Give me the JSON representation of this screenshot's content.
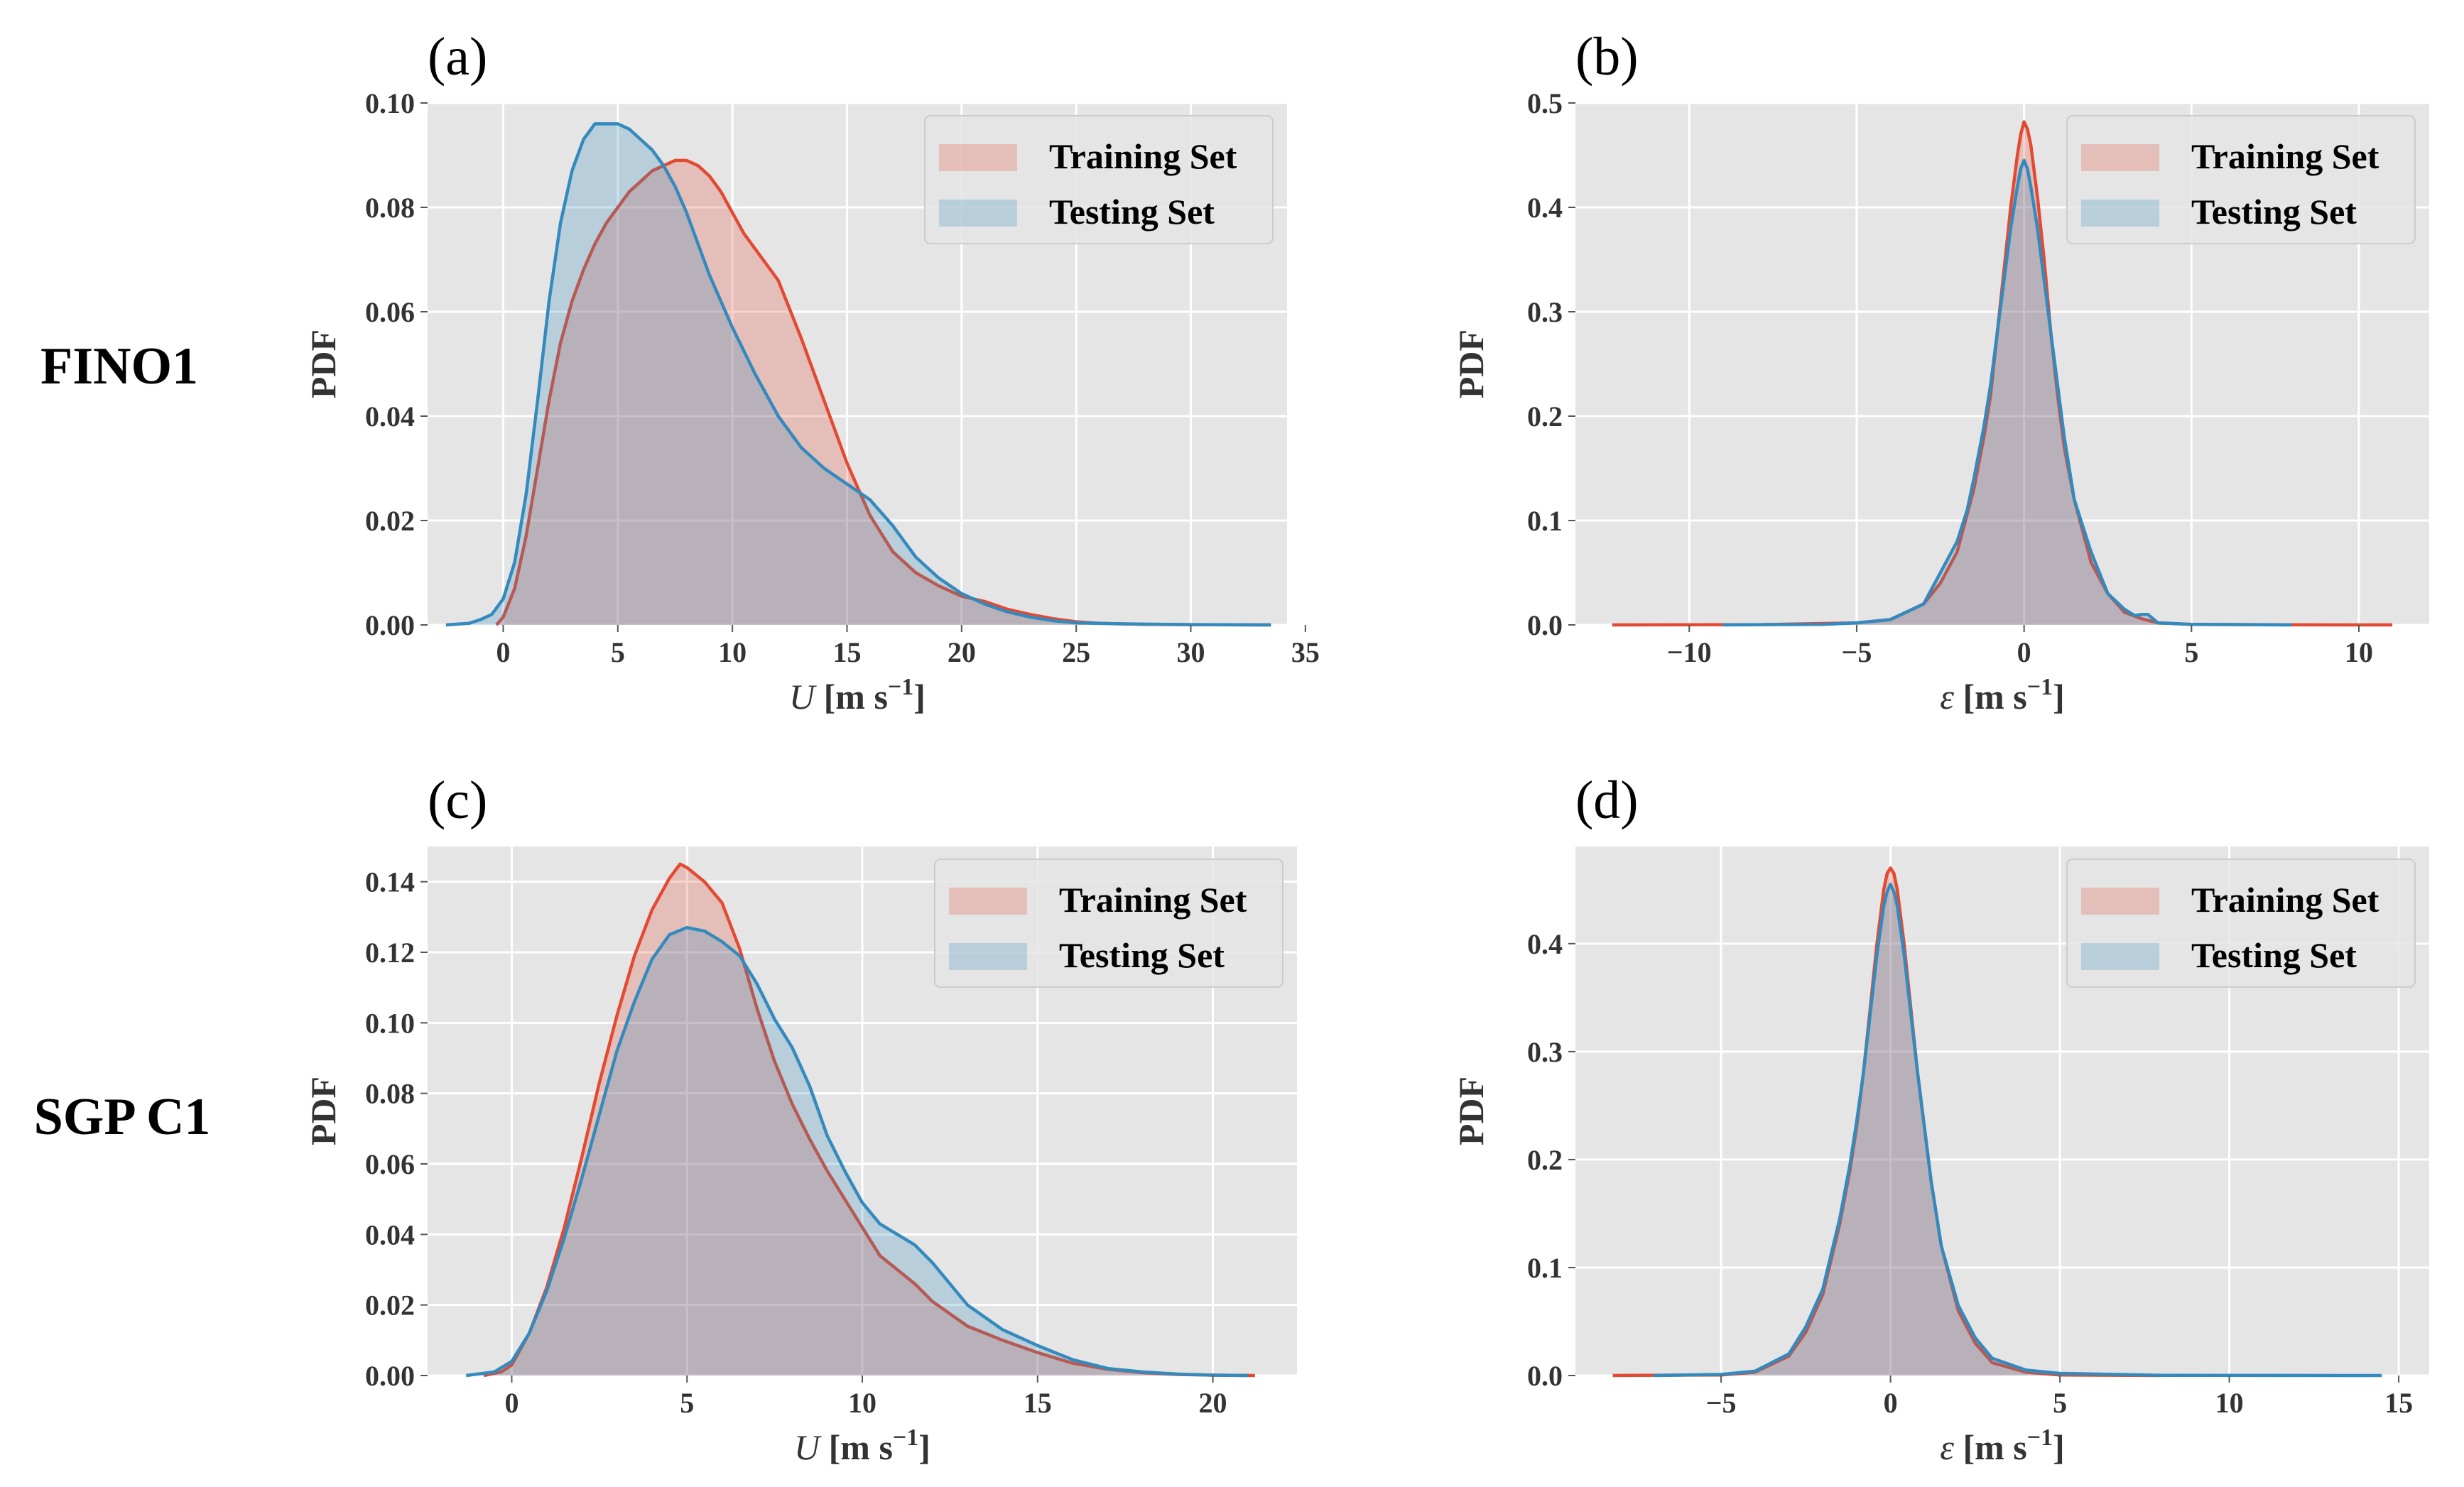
{
  "row_labels": [
    "FINO1",
    "SGP C1"
  ],
  "colors": {
    "training": "#E24A33",
    "testing": "#348ABD",
    "axes_bg": "#E5E5E5",
    "grid": "#FFFFFF"
  },
  "chart_data": [
    {
      "type": "area",
      "panel_label": "(a)",
      "row": "FINO1",
      "xlabel_var": "U",
      "xlabel_unit": " [m s",
      "xlabel_exp": "−1",
      "xlabel_close": "]",
      "ylabel": "PDF",
      "xlim": [
        -3.3,
        34.2
      ],
      "ylim": [
        0,
        0.1
      ],
      "xticks": [
        0,
        5,
        10,
        15,
        20,
        25,
        30,
        35
      ],
      "xtick_labels": [
        "0",
        "5",
        "10",
        "15",
        "20",
        "25",
        "30",
        "35"
      ],
      "yticks": [
        0,
        0.02,
        0.04,
        0.06,
        0.08,
        0.1
      ],
      "ytick_labels": [
        "0.00",
        "0.02",
        "0.04",
        "0.06",
        "0.08",
        "0.10"
      ],
      "legend": {
        "placement": "top-right",
        "entries": [
          "Training Set",
          "Testing Set"
        ]
      },
      "series": [
        {
          "name": "Training Set",
          "x": [
            -0.3,
            0,
            0.5,
            1,
            1.5,
            2,
            2.5,
            3,
            3.5,
            4,
            4.5,
            5,
            5.5,
            6,
            6.5,
            7,
            7.5,
            8,
            8.5,
            9,
            9.5,
            10,
            10.5,
            11,
            12,
            13,
            14,
            15,
            16,
            17,
            18,
            19,
            20,
            21,
            22,
            23,
            24,
            25,
            26,
            28,
            30,
            33.5
          ],
          "y": [
            0,
            0.0015,
            0.007,
            0.017,
            0.03,
            0.043,
            0.054,
            0.062,
            0.068,
            0.073,
            0.077,
            0.08,
            0.083,
            0.085,
            0.087,
            0.088,
            0.089,
            0.089,
            0.088,
            0.086,
            0.083,
            0.079,
            0.075,
            0.072,
            0.066,
            0.055,
            0.043,
            0.031,
            0.021,
            0.014,
            0.01,
            0.0075,
            0.0055,
            0.0045,
            0.003,
            0.002,
            0.0012,
            0.0006,
            0.0003,
            0.0001,
            5e-05,
            0
          ]
        },
        {
          "name": "Testing Set",
          "x": [
            -2.5,
            -1.5,
            -1,
            -0.5,
            0,
            0.5,
            1,
            1.5,
            2,
            2.5,
            3,
            3.5,
            4,
            4.5,
            5,
            5.5,
            6,
            6.5,
            7,
            7.5,
            8,
            8.5,
            9,
            9.5,
            10,
            11,
            12,
            13,
            14,
            15,
            16,
            17,
            18,
            19,
            20,
            21,
            22,
            23,
            24,
            25,
            27,
            30,
            33.5
          ],
          "y": [
            0,
            0.0003,
            0.001,
            0.002,
            0.005,
            0.012,
            0.025,
            0.043,
            0.062,
            0.077,
            0.087,
            0.093,
            0.096,
            0.096,
            0.096,
            0.095,
            0.093,
            0.091,
            0.088,
            0.084,
            0.079,
            0.073,
            0.067,
            0.062,
            0.057,
            0.048,
            0.04,
            0.034,
            0.03,
            0.027,
            0.024,
            0.019,
            0.013,
            0.009,
            0.006,
            0.004,
            0.0025,
            0.0015,
            0.0008,
            0.0004,
            0.0002,
            5e-05,
            0
          ]
        }
      ]
    },
    {
      "type": "area",
      "panel_label": "(b)",
      "row": "FINO1",
      "xlabel_var": "ε",
      "xlabel_unit": " [m s",
      "xlabel_exp": "−1",
      "xlabel_close": "]",
      "ylabel": "PDF",
      "xlim": [
        -13.4,
        12.1
      ],
      "ylim": [
        0,
        0.5
      ],
      "xticks": [
        -10,
        -5,
        0,
        5,
        10
      ],
      "xtick_labels": [
        "−10",
        "−5",
        "0",
        "5",
        "10"
      ],
      "yticks": [
        0,
        0.1,
        0.2,
        0.3,
        0.4,
        0.5
      ],
      "ytick_labels": [
        "0.0",
        "0.1",
        "0.2",
        "0.3",
        "0.4",
        "0.5"
      ],
      "legend": {
        "placement": "top-right",
        "entries": [
          "Training Set",
          "Testing Set"
        ]
      },
      "series": [
        {
          "name": "Training Set",
          "x": [
            -12.3,
            -8,
            -5,
            -4,
            -3,
            -2.5,
            -2,
            -1.5,
            -1.2,
            -1,
            -0.8,
            -0.6,
            -0.4,
            -0.2,
            -0.1,
            0,
            0.1,
            0.2,
            0.4,
            0.6,
            0.8,
            1,
            1.2,
            1.5,
            2,
            2.5,
            3,
            3.5,
            4,
            5,
            8,
            11
          ],
          "y": [
            0,
            0.0002,
            0.002,
            0.005,
            0.02,
            0.04,
            0.07,
            0.13,
            0.18,
            0.22,
            0.28,
            0.34,
            0.4,
            0.45,
            0.47,
            0.482,
            0.475,
            0.46,
            0.41,
            0.35,
            0.28,
            0.22,
            0.17,
            0.12,
            0.06,
            0.03,
            0.012,
            0.006,
            0.002,
            0.0005,
            0.0001,
            0
          ]
        },
        {
          "name": "Testing Set",
          "x": [
            -9,
            -6,
            -5,
            -4,
            -3,
            -2.5,
            -2,
            -1.7,
            -1.5,
            -1.2,
            -1,
            -0.8,
            -0.6,
            -0.4,
            -0.2,
            -0.1,
            0,
            0.1,
            0.2,
            0.4,
            0.6,
            0.8,
            1,
            1.2,
            1.5,
            2,
            2.5,
            3,
            3.3,
            3.5,
            3.7,
            4,
            5,
            8
          ],
          "y": [
            0,
            0.0005,
            0.002,
            0.005,
            0.02,
            0.05,
            0.08,
            0.11,
            0.14,
            0.19,
            0.23,
            0.28,
            0.33,
            0.38,
            0.42,
            0.437,
            0.445,
            0.437,
            0.42,
            0.38,
            0.33,
            0.28,
            0.23,
            0.18,
            0.12,
            0.07,
            0.03,
            0.015,
            0.009,
            0.01,
            0.01,
            0.002,
            0.0005,
            0
          ]
        }
      ]
    },
    {
      "type": "area",
      "panel_label": "(c)",
      "row": "SGP C1",
      "xlabel_var": "U",
      "xlabel_unit": " [m s",
      "xlabel_exp": "−1",
      "xlabel_close": "]",
      "ylabel": "PDF",
      "xlim": [
        -2.4,
        22.4
      ],
      "ylim": [
        0,
        0.15
      ],
      "xticks": [
        0,
        5,
        10,
        15,
        20
      ],
      "xtick_labels": [
        "0",
        "5",
        "10",
        "15",
        "20"
      ],
      "yticks": [
        0,
        0.02,
        0.04,
        0.06,
        0.08,
        0.1,
        0.12,
        0.14
      ],
      "ytick_labels": [
        "0.00",
        "0.02",
        "0.04",
        "0.06",
        "0.08",
        "0.10",
        "0.12",
        "0.14"
      ],
      "legend": {
        "placement": "top-right",
        "entries": [
          "Training Set",
          "Testing Set"
        ]
      },
      "series": [
        {
          "name": "Training Set",
          "x": [
            -0.8,
            -0.3,
            0,
            0.5,
            1,
            1.5,
            2,
            2.5,
            3,
            3.5,
            4,
            4.5,
            4.8,
            5,
            5.5,
            6,
            6.5,
            7,
            7.5,
            8,
            8.5,
            9,
            9.5,
            10,
            10.5,
            11,
            11.5,
            12,
            13,
            14,
            15,
            16,
            17,
            18,
            19,
            20,
            21.2
          ],
          "y": [
            0,
            0.001,
            0.003,
            0.012,
            0.025,
            0.042,
            0.062,
            0.083,
            0.102,
            0.119,
            0.132,
            0.141,
            0.145,
            0.144,
            0.14,
            0.134,
            0.121,
            0.104,
            0.089,
            0.077,
            0.067,
            0.058,
            0.05,
            0.042,
            0.034,
            0.03,
            0.026,
            0.021,
            0.014,
            0.01,
            0.0065,
            0.0035,
            0.0018,
            0.0008,
            0.0003,
            0.0001,
            0
          ]
        },
        {
          "name": "Testing Set",
          "x": [
            -1.3,
            -0.5,
            0,
            0.5,
            1,
            1.5,
            2,
            2.5,
            3,
            3.5,
            4,
            4.5,
            5,
            5.5,
            6,
            6.5,
            7,
            7.5,
            8,
            8.5,
            9,
            9.5,
            10,
            10.5,
            11,
            11.5,
            12,
            13,
            14,
            15,
            16,
            17,
            18,
            19,
            20,
            21
          ],
          "y": [
            0,
            0.001,
            0.004,
            0.012,
            0.024,
            0.039,
            0.056,
            0.074,
            0.092,
            0.106,
            0.118,
            0.125,
            0.127,
            0.126,
            0.123,
            0.119,
            0.111,
            0.101,
            0.093,
            0.082,
            0.068,
            0.058,
            0.049,
            0.043,
            0.04,
            0.037,
            0.032,
            0.02,
            0.013,
            0.0085,
            0.0045,
            0.002,
            0.001,
            0.0004,
            0.0001,
            0
          ]
        }
      ]
    },
    {
      "type": "area",
      "panel_label": "(d)",
      "row": "SGP C1",
      "xlabel_var": "ε",
      "xlabel_unit": " [m s",
      "xlabel_exp": "−1",
      "xlabel_close": "]",
      "ylabel": "PDF",
      "xlim": [
        -9.3,
        15.9
      ],
      "ylim": [
        0,
        0.49
      ],
      "xticks": [
        -5,
        0,
        5,
        10,
        15
      ],
      "xtick_labels": [
        "−5",
        "0",
        "5",
        "10",
        "15"
      ],
      "yticks": [
        0,
        0.1,
        0.2,
        0.3,
        0.4
      ],
      "ytick_labels": [
        "0.0",
        "0.1",
        "0.2",
        "0.3",
        "0.4"
      ],
      "legend": {
        "placement": "top-right",
        "entries": [
          "Training Set",
          "Testing Set"
        ]
      },
      "series": [
        {
          "name": "Training Set",
          "x": [
            -8.2,
            -5,
            -4,
            -3,
            -2.5,
            -2,
            -1.5,
            -1.2,
            -1,
            -0.8,
            -0.6,
            -0.4,
            -0.2,
            -0.1,
            0,
            0.1,
            0.2,
            0.4,
            0.6,
            0.8,
            1,
            1.2,
            1.5,
            2,
            2.5,
            3,
            4,
            5,
            8
          ],
          "y": [
            0,
            0.0005,
            0.003,
            0.018,
            0.04,
            0.075,
            0.14,
            0.19,
            0.23,
            0.28,
            0.34,
            0.4,
            0.45,
            0.465,
            0.47,
            0.465,
            0.45,
            0.4,
            0.34,
            0.28,
            0.23,
            0.18,
            0.12,
            0.06,
            0.03,
            0.012,
            0.003,
            0.0005,
            0
          ]
        },
        {
          "name": "Testing Set",
          "x": [
            -7,
            -5,
            -4,
            -3,
            -2.5,
            -2,
            -1.5,
            -1.2,
            -1,
            -0.8,
            -0.6,
            -0.4,
            -0.2,
            -0.1,
            0,
            0.1,
            0.2,
            0.4,
            0.6,
            0.8,
            1,
            1.2,
            1.5,
            2,
            2.5,
            3,
            4,
            5,
            8,
            14.5
          ],
          "y": [
            0,
            0.001,
            0.004,
            0.02,
            0.045,
            0.08,
            0.145,
            0.195,
            0.235,
            0.28,
            0.335,
            0.39,
            0.435,
            0.448,
            0.455,
            0.448,
            0.435,
            0.39,
            0.335,
            0.28,
            0.23,
            0.18,
            0.12,
            0.065,
            0.035,
            0.016,
            0.005,
            0.002,
            0.0002,
            0
          ]
        }
      ]
    }
  ]
}
